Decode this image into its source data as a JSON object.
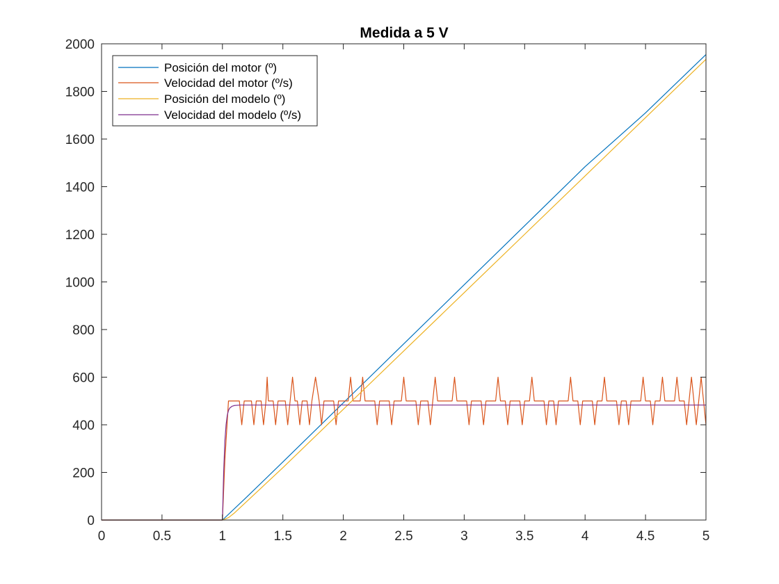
{
  "chart_data": {
    "type": "line",
    "title": "Medida a 5 V",
    "xlabel": "",
    "ylabel": "",
    "xlim": [
      0,
      5
    ],
    "ylim": [
      0,
      2000
    ],
    "x_ticks": [
      0,
      0.5,
      1,
      1.5,
      2,
      2.5,
      3,
      3.5,
      4,
      4.5,
      5
    ],
    "x_tick_labels": [
      "0",
      "0.5",
      "1",
      "1.5",
      "2",
      "2.5",
      "3",
      "3.5",
      "4",
      "4.5",
      "5"
    ],
    "y_ticks": [
      0,
      200,
      400,
      600,
      800,
      1000,
      1200,
      1400,
      1600,
      1800,
      2000
    ],
    "y_tick_labels": [
      "0",
      "200",
      "400",
      "600",
      "800",
      "1000",
      "1200",
      "1400",
      "1600",
      "1800",
      "2000"
    ],
    "grid": false,
    "legend_position": "top-left",
    "series": [
      {
        "name": "Posición del motor (º)",
        "color": "#0072BD",
        "x": [
          0,
          1.0,
          1.2,
          1.5,
          2.0,
          2.5,
          3.0,
          3.5,
          4.0,
          4.5,
          5.0
        ],
        "y": [
          0,
          0,
          96,
          244,
          492,
          740,
          988,
          1236,
          1484,
          1710,
          1955
        ]
      },
      {
        "name": "Velocidad del motor (º/s)",
        "color": "#D95319",
        "x": [
          0,
          0.99,
          1.0,
          1.02,
          1.05,
          1.07,
          1.1,
          1.14,
          1.16,
          1.18,
          1.24,
          1.26,
          1.28,
          1.32,
          1.34,
          1.36,
          1.37,
          1.38,
          1.42,
          1.44,
          1.46,
          1.52,
          1.54,
          1.56,
          1.58,
          1.6,
          1.62,
          1.64,
          1.66,
          1.7,
          1.72,
          1.74,
          1.77,
          1.8,
          1.82,
          1.84,
          1.92,
          1.94,
          1.96,
          2.04,
          2.06,
          2.08,
          2.14,
          2.16,
          2.18,
          2.26,
          2.28,
          2.3,
          2.38,
          2.4,
          2.42,
          2.48,
          2.5,
          2.52,
          2.6,
          2.62,
          2.64,
          2.7,
          2.72,
          2.74,
          2.76,
          2.78,
          2.8,
          2.9,
          2.92,
          2.94,
          3.02,
          3.04,
          3.06,
          3.14,
          3.16,
          3.18,
          3.26,
          3.28,
          3.3,
          3.34,
          3.36,
          3.38,
          3.46,
          3.48,
          3.5,
          3.54,
          3.56,
          3.58,
          3.66,
          3.68,
          3.7,
          3.74,
          3.76,
          3.78,
          3.86,
          3.88,
          3.9,
          3.94,
          3.96,
          3.98,
          4.06,
          4.08,
          4.1,
          4.14,
          4.16,
          4.18,
          4.26,
          4.28,
          4.3,
          4.34,
          4.36,
          4.38,
          4.46,
          4.48,
          4.5,
          4.54,
          4.56,
          4.58,
          4.62,
          4.64,
          4.66,
          4.74,
          4.76,
          4.78,
          4.82,
          4.84,
          4.86,
          4.88,
          4.9,
          4.92,
          4.94,
          4.96,
          4.98,
          5.0
        ],
        "y": [
          0,
          0,
          0,
          250,
          500,
          500,
          500,
          500,
          400,
          500,
          500,
          400,
          500,
          500,
          400,
          500,
          600,
          500,
          500,
          400,
          500,
          500,
          400,
          500,
          600,
          500,
          500,
          400,
          500,
          500,
          400,
          500,
          600,
          500,
          400,
          500,
          500,
          400,
          500,
          500,
          600,
          500,
          500,
          600,
          500,
          500,
          400,
          500,
          500,
          400,
          500,
          500,
          600,
          500,
          500,
          400,
          500,
          500,
          400,
          500,
          600,
          500,
          500,
          500,
          600,
          500,
          500,
          400,
          500,
          500,
          400,
          500,
          500,
          600,
          500,
          500,
          400,
          500,
          500,
          400,
          500,
          500,
          600,
          500,
          500,
          400,
          500,
          500,
          400,
          500,
          500,
          600,
          500,
          500,
          400,
          500,
          500,
          400,
          500,
          500,
          600,
          500,
          500,
          400,
          500,
          500,
          400,
          500,
          500,
          600,
          500,
          500,
          400,
          500,
          500,
          600,
          500,
          500,
          600,
          500,
          500,
          400,
          500,
          600,
          500,
          400,
          500,
          600,
          500,
          400
        ]
      },
      {
        "name": "Posición del modelo (º)",
        "color": "#EDB120",
        "x": [
          0,
          1.0,
          1.05,
          1.1,
          1.5,
          2.0,
          2.5,
          3.0,
          3.5,
          4.0,
          4.5,
          5.0
        ],
        "y": [
          0,
          0,
          10,
          30,
          220,
          465,
          710,
          955,
          1200,
          1445,
          1690,
          1935
        ]
      },
      {
        "name": "Velocidad del modelo (º/s)",
        "color": "#7E2F8E",
        "x": [
          0,
          1.0,
          1.01,
          1.02,
          1.03,
          1.04,
          1.05,
          1.06,
          1.08,
          1.1,
          1.15,
          1.2,
          5.0
        ],
        "y": [
          0,
          0,
          200,
          330,
          400,
          440,
          460,
          470,
          478,
          481,
          483,
          483,
          483
        ]
      }
    ]
  }
}
